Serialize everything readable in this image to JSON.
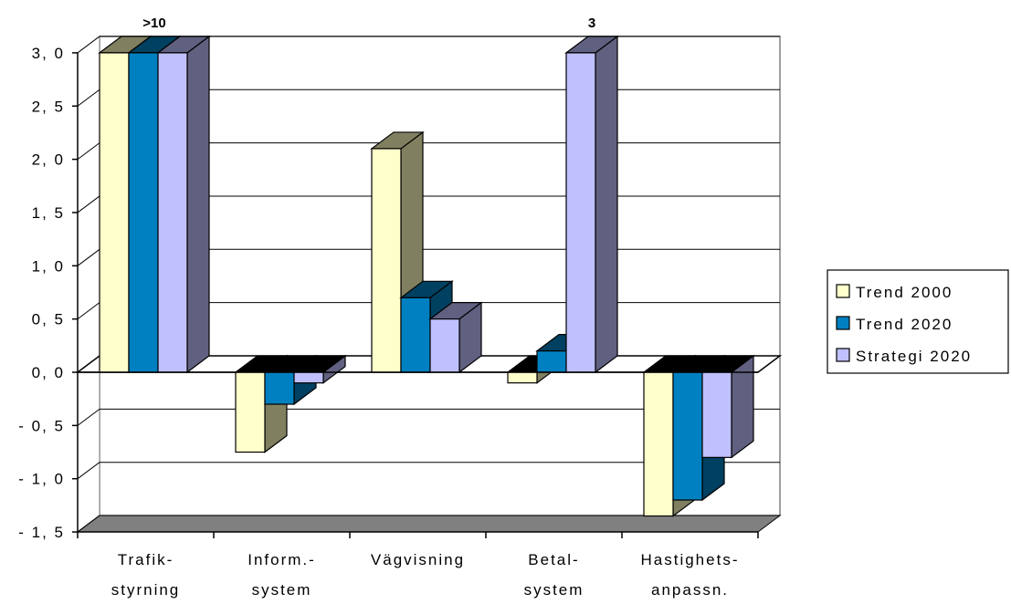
{
  "chart_data": {
    "type": "bar",
    "three_d": true,
    "categories": [
      [
        "Trafik-",
        "styrning"
      ],
      [
        "Inform.-",
        "system"
      ],
      [
        "Vägvisning"
      ],
      [
        "Betal-",
        "system"
      ],
      [
        "Hastighets-",
        "anpassn."
      ]
    ],
    "series": [
      {
        "name": "Trend 2000",
        "color": "#ffffcc",
        "side": "#808060",
        "values": [
          3.0,
          -0.75,
          2.1,
          -0.1,
          -1.35
        ]
      },
      {
        "name": "Trend 2020",
        "color": "#0080c0",
        "side": "#004060",
        "values": [
          3.0,
          -0.3,
          0.7,
          0.2,
          -1.2
        ]
      },
      {
        "name": "Strategi 2020",
        "color": "#c0c0ff",
        "side": "#606080",
        "values": [
          3.0,
          -0.1,
          0.5,
          3.0,
          -0.8
        ]
      }
    ],
    "ylim": [
      -1.5,
      3.0
    ],
    "yticks": [
      "3, 0",
      "2, 5",
      "2, 0",
      "1, 5",
      "1, 0",
      "0, 5",
      "0, 0",
      "- 0, 5",
      "- 1, 0",
      "- 1, 5"
    ],
    "data_labels": [
      {
        "text": ">10",
        "category": 0,
        "series": 1
      },
      {
        "text": "3",
        "category": 3,
        "series": 2
      }
    ],
    "legend_position": "right",
    "grid": true,
    "title": "",
    "xlabel": "",
    "ylabel": ""
  }
}
